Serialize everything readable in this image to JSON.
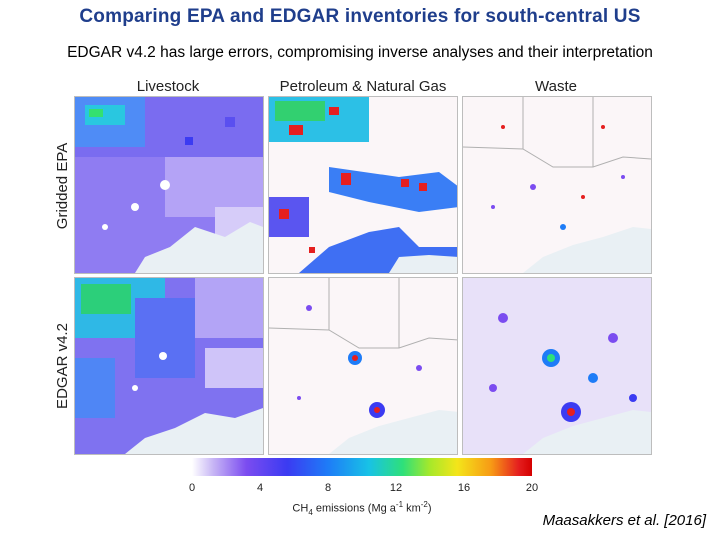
{
  "title": "Comparing EPA and EDGAR inventories for south-central US",
  "subtitle": "EDGAR v4.2 has large errors, compromising inverse analyses and their interpretation",
  "columns": [
    "Livestock",
    "Petroleum & Natural Gas",
    "Waste"
  ],
  "rows": [
    "Gridded EPA",
    "EDGAR v4.2"
  ],
  "colorbar": {
    "ticks": [
      "0",
      "4",
      "8",
      "12",
      "16",
      "20"
    ],
    "units_prefix": "CH",
    "units_sub": "4",
    "units_mid": " emissions (Mg a",
    "units_sup1": "-1",
    "units_mid2": " km",
    "units_sup2": "-2",
    "units_suffix": ")",
    "colors": [
      "#ffffff",
      "#7b4cf0",
      "#1e7cf7",
      "#2ee07a",
      "#f4e51a",
      "#e51f1f"
    ]
  },
  "citation": "Maasakkers et al. [2016]"
}
